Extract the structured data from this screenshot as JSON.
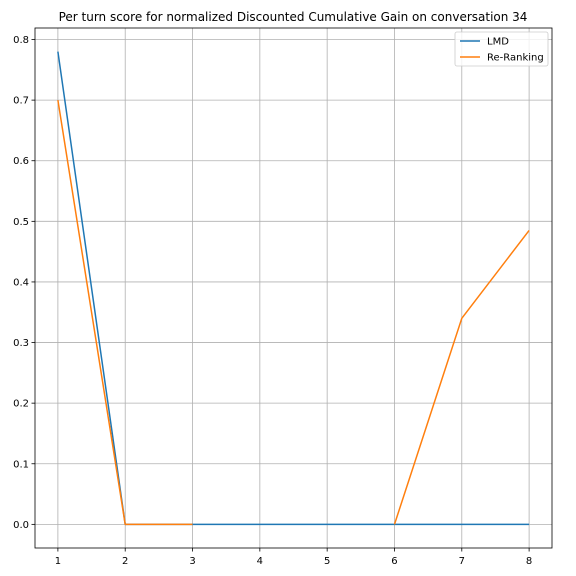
{
  "chart_data": {
    "type": "line",
    "title": "Per turn score for normalized Discounted Cumulative Gain on conversation 34",
    "xlabel": "",
    "ylabel": "",
    "x": [
      1,
      2,
      3,
      4,
      5,
      6,
      7,
      8
    ],
    "xlim": [
      0.66,
      8.34
    ],
    "ylim": [
      -0.039,
      0.819
    ],
    "xticks": [
      1,
      2,
      3,
      4,
      5,
      6,
      7,
      8
    ],
    "yticks": [
      0.0,
      0.1,
      0.2,
      0.3,
      0.4,
      0.5,
      0.6,
      0.7,
      0.8
    ],
    "ytick_labels": [
      "0.0",
      "0.1",
      "0.2",
      "0.3",
      "0.4",
      "0.5",
      "0.6",
      "0.7",
      "0.8"
    ],
    "grid": true,
    "legend_position": "top-right",
    "series": [
      {
        "name": "LMD",
        "color": "#1f77b4",
        "values": [
          0.78,
          0.0,
          0.0,
          0.0,
          0.0,
          0.0,
          0.0,
          0.0
        ]
      },
      {
        "name": "Re-Ranking",
        "color": "#ff7f0e",
        "values": [
          0.7,
          0.0,
          0.0,
          null,
          null,
          0.0,
          0.34,
          0.485
        ]
      }
    ]
  }
}
